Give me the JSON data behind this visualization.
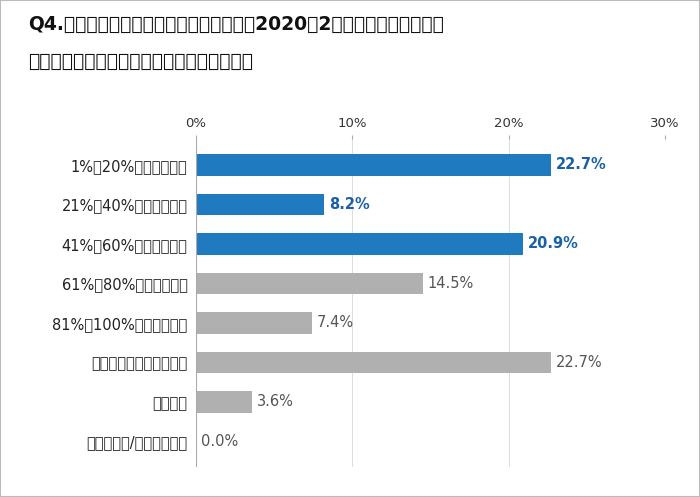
{
  "title_line1": "Q4.あなたの会社では、新型コロナ以前（2020年2月以前）と比較して、",
  "title_line2": "　新規商談の数はどの程度変化しましたか。",
  "categories": [
    "1%～20%程度減少した",
    "21%～40%程度減少した",
    "41%～60%程度減少した",
    "61%～80%程度減少した",
    "81%～100%程度減少した",
    "ほとんど変わっていない",
    "増加した",
    "わからない/答えられない"
  ],
  "values": [
    22.7,
    8.2,
    20.9,
    14.5,
    7.4,
    22.7,
    3.6,
    0.0
  ],
  "bar_colors": [
    "#1f7abf",
    "#1f7abf",
    "#1f7abf",
    "#b0b0b0",
    "#b0b0b0",
    "#b0b0b0",
    "#b0b0b0",
    "#b0b0b0"
  ],
  "label_colors": [
    "#1a5fa8",
    "#1a5fa8",
    "#1a5fa8",
    "#555555",
    "#555555",
    "#555555",
    "#555555",
    "#555555"
  ],
  "xlim": [
    0,
    30
  ],
  "xtick_positions": [
    0,
    10,
    20,
    30
  ],
  "xtick_labels": [
    "0%",
    "10%",
    "20%",
    "30%"
  ],
  "background_color": "#ffffff",
  "border_color": "#cccccc",
  "title_fontsize": 13.5,
  "label_fontsize": 10.5,
  "value_fontsize": 10.5,
  "tick_fontsize": 9.5
}
